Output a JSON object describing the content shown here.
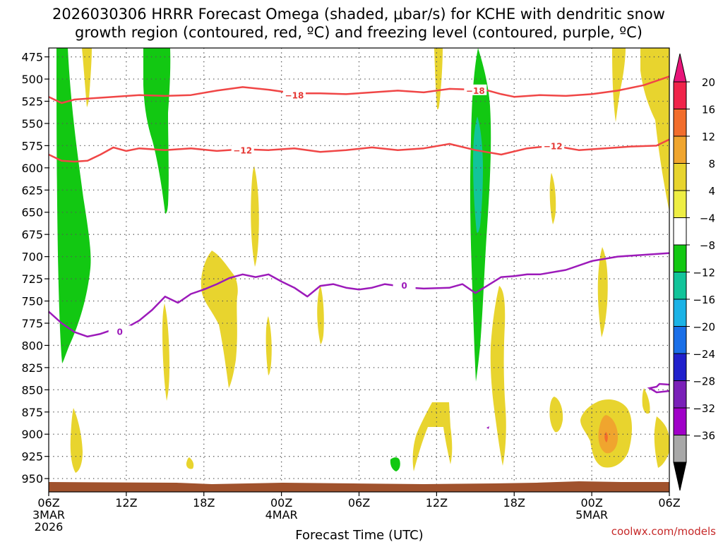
{
  "chart_data": {
    "type": "heatmap",
    "title_line1": "2026030306 HRRR Forecast Omega (shaded, μbar/s) for KCHE with dendritic snow",
    "title_line2": "growth region (contoured, red, ºC) and freezing level (contoured, purple, ºC)",
    "xlabel": "Forecast Time (UTC)",
    "credit": "coolwx.com/models",
    "x_hours": [
      0,
      48
    ],
    "x_ticks": [
      {
        "h": 0,
        "label": "06Z",
        "date1": "3MAR",
        "date2": "2026"
      },
      {
        "h": 6,
        "label": "12Z"
      },
      {
        "h": 12,
        "label": "18Z"
      },
      {
        "h": 18,
        "label": "00Z",
        "date1": "4MAR"
      },
      {
        "h": 24,
        "label": "06Z"
      },
      {
        "h": 30,
        "label": "12Z"
      },
      {
        "h": 36,
        "label": "18Z"
      },
      {
        "h": 42,
        "label": "00Z",
        "date1": "5MAR"
      },
      {
        "h": 48,
        "label": "06Z"
      }
    ],
    "y_pressure_top": 465,
    "y_pressure_bottom": 965,
    "y_ticks": [
      475,
      500,
      525,
      550,
      575,
      600,
      625,
      650,
      675,
      700,
      725,
      750,
      775,
      800,
      825,
      850,
      875,
      900,
      925,
      950
    ],
    "colorbar": {
      "labels": [
        "20",
        "16",
        "12",
        "8",
        "4",
        "−4",
        "−8",
        "−12",
        "−16",
        "−20",
        "−24",
        "−28",
        "−32",
        "−36"
      ],
      "colors": [
        "#f0244a",
        "#f26d2c",
        "#f0a52e",
        "#e8d42e",
        "#eeee44",
        "#ffffff",
        "#12c812",
        "#12c49a",
        "#1bb3e6",
        "#1a6fe8",
        "#2020cc",
        "#7a20b8",
        "#a000c8",
        "#a8a8a8"
      ],
      "top_arrow_color": "#e8157a",
      "bottom_arrow_color": "#000000"
    },
    "contours": [
      {
        "name": "dgz-upper",
        "label": "−18",
        "color": "#f04646",
        "points": [
          [
            0,
            520
          ],
          [
            1,
            527
          ],
          [
            2,
            523
          ],
          [
            3,
            522
          ],
          [
            5,
            520
          ],
          [
            7,
            518
          ],
          [
            9,
            519
          ],
          [
            11,
            518
          ],
          [
            13,
            513
          ],
          [
            15,
            509
          ],
          [
            17,
            512
          ],
          [
            19,
            516
          ],
          [
            21,
            516
          ],
          [
            23,
            517
          ],
          [
            25,
            515
          ],
          [
            27,
            513
          ],
          [
            29,
            515
          ],
          [
            31,
            511
          ],
          [
            33,
            512
          ],
          [
            34,
            513
          ],
          [
            35,
            517
          ],
          [
            36,
            520
          ],
          [
            38,
            518
          ],
          [
            40,
            519
          ],
          [
            42,
            517
          ],
          [
            44,
            513
          ],
          [
            46,
            507
          ],
          [
            48,
            497
          ]
        ],
        "label_at": [
          [
            19,
            518
          ],
          [
            33,
            512.5
          ]
        ]
      },
      {
        "name": "dgz-lower",
        "label": "−12",
        "color": "#f04646",
        "points": [
          [
            0,
            585
          ],
          [
            1,
            592
          ],
          [
            2,
            593
          ],
          [
            3,
            592
          ],
          [
            4,
            585
          ],
          [
            5,
            577
          ],
          [
            6,
            581
          ],
          [
            7,
            578
          ],
          [
            9,
            580
          ],
          [
            11,
            578
          ],
          [
            13,
            581
          ],
          [
            15,
            579
          ],
          [
            17,
            580
          ],
          [
            19,
            578
          ],
          [
            21,
            582
          ],
          [
            23,
            580
          ],
          [
            25,
            577
          ],
          [
            27,
            580
          ],
          [
            29,
            578
          ],
          [
            31,
            573
          ],
          [
            33,
            580
          ],
          [
            35,
            585
          ],
          [
            37,
            578
          ],
          [
            39,
            575
          ],
          [
            41,
            580
          ],
          [
            43,
            578
          ],
          [
            45,
            576
          ],
          [
            47,
            575
          ],
          [
            48,
            568
          ]
        ],
        "label_at": [
          [
            15,
            580
          ],
          [
            39,
            575
          ]
        ]
      },
      {
        "name": "freezing-level",
        "label": "0",
        "color": "#9c1aba",
        "points": [
          [
            0,
            762
          ],
          [
            1,
            775
          ],
          [
            2,
            785
          ],
          [
            3,
            790
          ],
          [
            4,
            787
          ],
          [
            5,
            782
          ],
          [
            6,
            780
          ],
          [
            7,
            772
          ],
          [
            8,
            760
          ],
          [
            9,
            745
          ],
          [
            10,
            752
          ],
          [
            11,
            742
          ],
          [
            12,
            737
          ],
          [
            13,
            731
          ],
          [
            14,
            724
          ],
          [
            15,
            720
          ],
          [
            16,
            723
          ],
          [
            17,
            720
          ],
          [
            18,
            728
          ],
          [
            19,
            735
          ],
          [
            20,
            745
          ],
          [
            21,
            733
          ],
          [
            22,
            731
          ],
          [
            23,
            735
          ],
          [
            24,
            737
          ],
          [
            25,
            735
          ],
          [
            26,
            731
          ],
          [
            27,
            733
          ],
          [
            28,
            735
          ],
          [
            29,
            736
          ],
          [
            31,
            735
          ],
          [
            32,
            731
          ],
          [
            33,
            741
          ],
          [
            34,
            732
          ],
          [
            35,
            723
          ],
          [
            36,
            722
          ],
          [
            37,
            720
          ],
          [
            38,
            720
          ],
          [
            40,
            715
          ],
          [
            42,
            705
          ],
          [
            44,
            700
          ],
          [
            46,
            698
          ],
          [
            48,
            696
          ]
        ],
        "label_at": [
          [
            5.5,
            784
          ],
          [
            27.5,
            732
          ]
        ]
      }
    ]
  }
}
